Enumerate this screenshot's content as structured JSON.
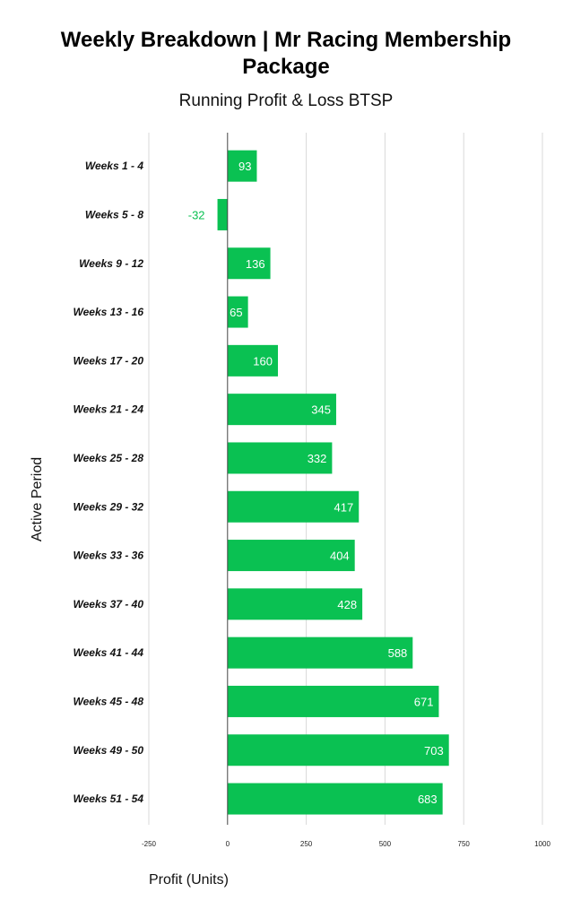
{
  "chart_data": {
    "type": "bar",
    "orientation": "horizontal",
    "title_line1": "Weekly Breakdown | Mr Racing Membership",
    "title_line2": "Package",
    "subtitle": "Running Profit & Loss BTSP",
    "xlabel": "Profit (Units)",
    "ylabel": "Active Period",
    "categories": [
      "Weeks 1 - 4",
      "Weeks 5 - 8",
      "Weeks 9 - 12",
      "Weeks 13 - 16",
      "Weeks 17 - 20",
      "Weeks 21 - 24",
      "Weeks 25 - 28",
      "Weeks 29 - 32",
      "Weeks 33 - 36",
      "Weeks 37 - 40",
      "Weeks 41 - 44",
      "Weeks 45 - 48",
      "Weeks 49 - 50",
      "Weeks 51 - 54"
    ],
    "values": [
      93,
      -32,
      136,
      65,
      160,
      345,
      332,
      417,
      404,
      428,
      588,
      671,
      703,
      683
    ],
    "data_labels": [
      "93",
      "-32",
      "136",
      "65",
      "160",
      "345",
      "332",
      "417",
      "404",
      "428",
      "588",
      "671",
      "703",
      "683"
    ],
    "xlim": [
      -250,
      1000
    ],
    "xticks": [
      -250,
      0,
      250,
      500,
      750,
      1000
    ],
    "xtick_labels": [
      "-250",
      "0",
      "250",
      "500",
      "750",
      "1000"
    ],
    "grid": true,
    "bar_color": "#0ac152"
  }
}
